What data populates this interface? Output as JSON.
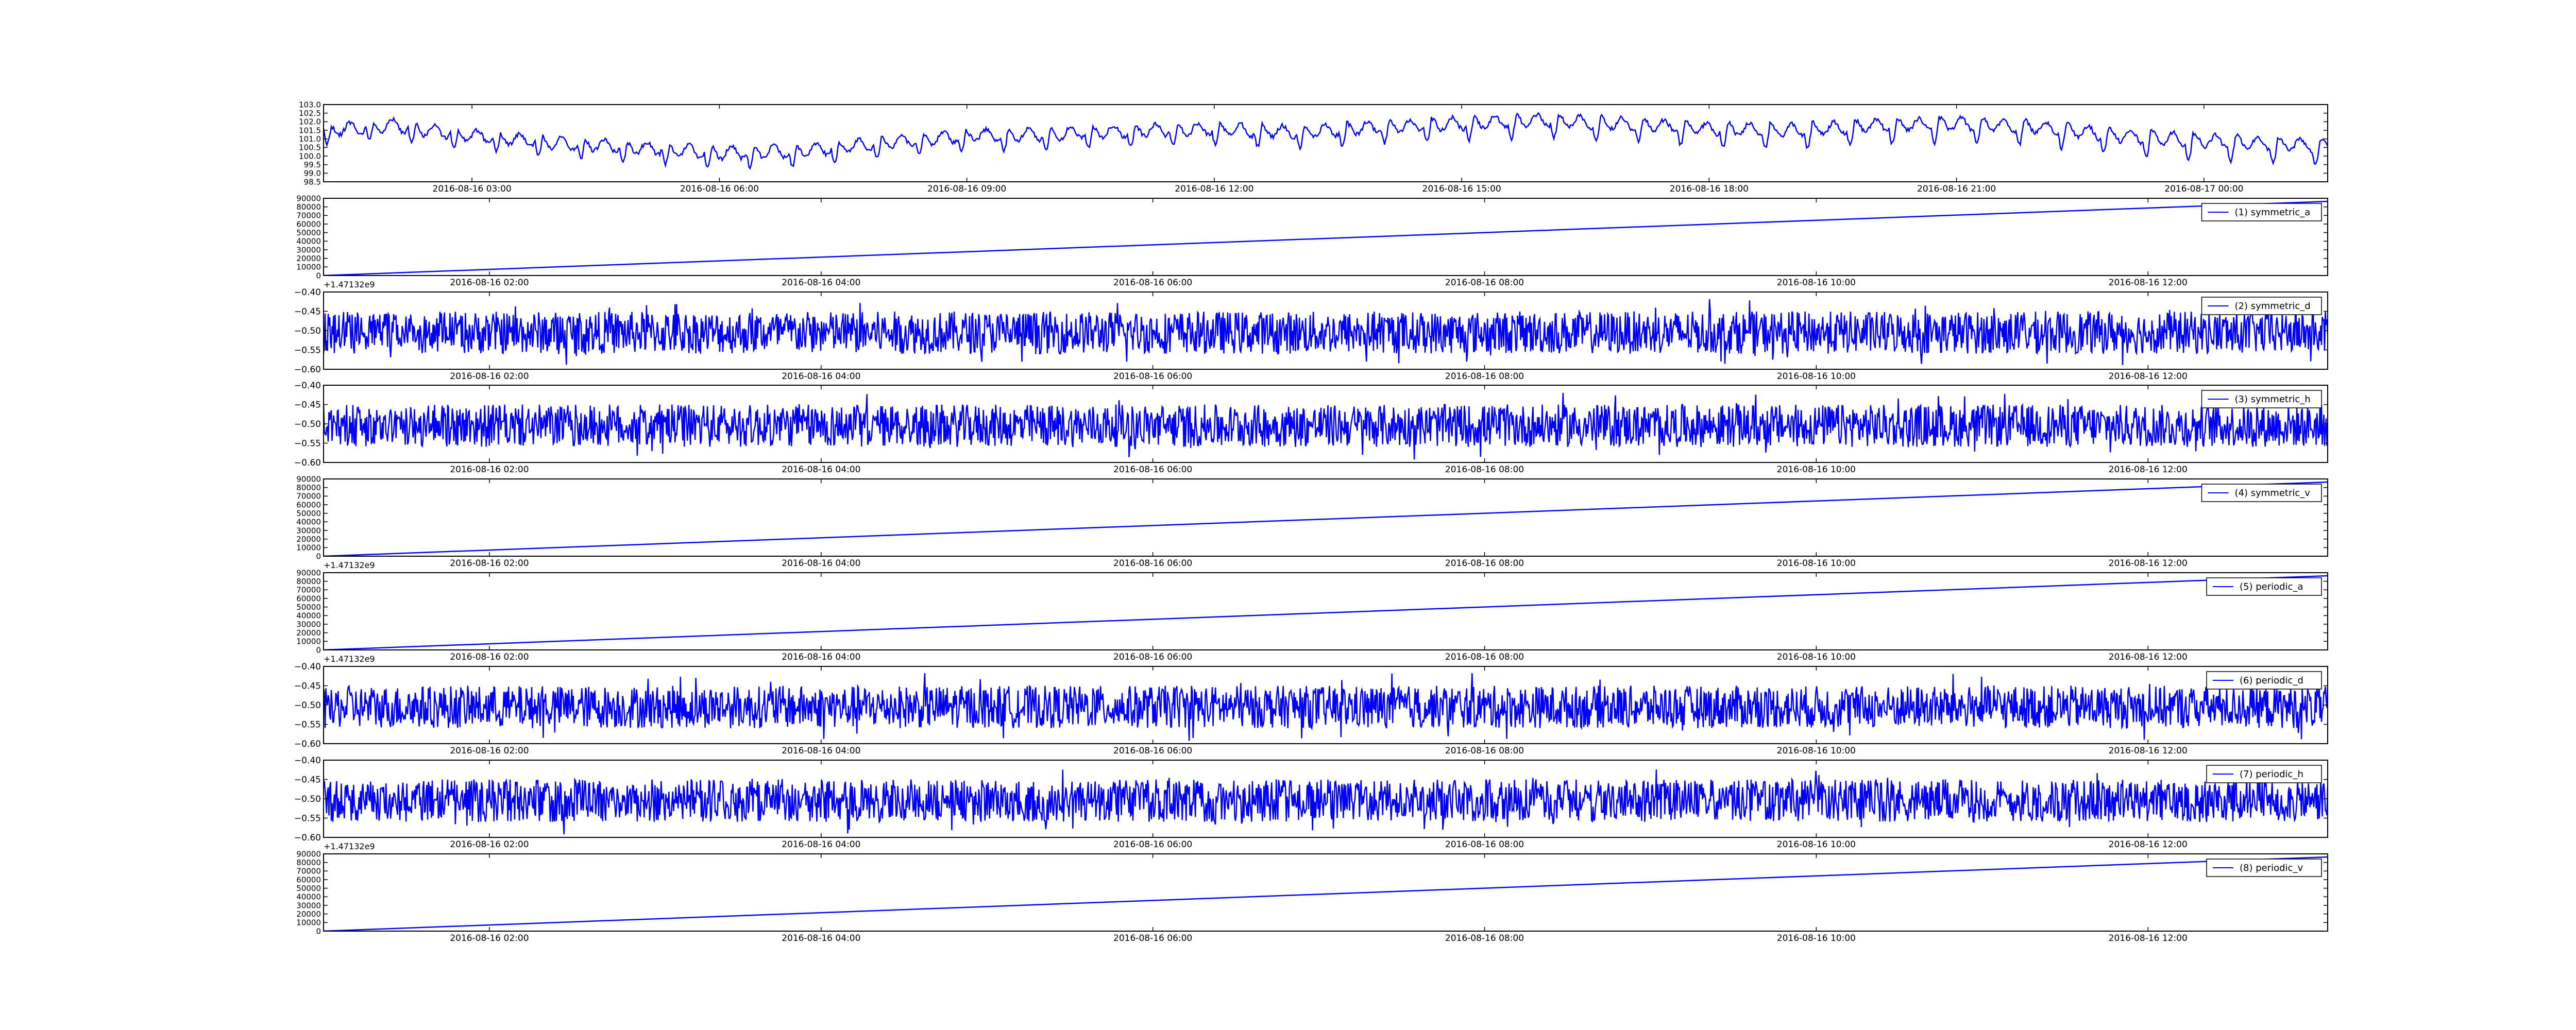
{
  "colors": {
    "line": "#0000ff",
    "axis": "#000000",
    "background": "#ffffff"
  },
  "chart_data": [
    {
      "type": "line",
      "legend": "",
      "x_type": "datetime",
      "xlim": [
        "2016-08-16 01:12",
        "2016-08-17 01:30"
      ],
      "ylim": [
        98.5,
        103.0
      ],
      "y_ticks": [
        "98.5",
        "99.0",
        "99.5",
        "100.0",
        "100.5",
        "101.0",
        "101.5",
        "102.0",
        "102.5",
        "103.0"
      ],
      "x_ticks": [
        {
          "value": "2016-08-16 03:00",
          "label": "2016-08-16 03:00"
        },
        {
          "value": "2016-08-16 06:00",
          "label": "2016-08-16 06:00"
        },
        {
          "value": "2016-08-16 09:00",
          "label": "2016-08-16 09:00"
        },
        {
          "value": "2016-08-16 12:00",
          "label": "2016-08-16 12:00"
        },
        {
          "value": "2016-08-16 15:00",
          "label": "2016-08-16 15:00"
        },
        {
          "value": "2016-08-16 18:00",
          "label": "2016-08-16 18:00"
        },
        {
          "value": "2016-08-16 21:00",
          "label": "2016-08-16 21:00"
        },
        {
          "value": "2016-08-17 00:00",
          "label": "2016-08-17 00:00"
        }
      ],
      "x_offset_label": "",
      "series": [
        {
          "x": [
            "2016-08-16 01:12",
            "2016-08-16 02:00",
            "2016-08-16 03:00",
            "2016-08-16 04:00",
            "2016-08-16 05:00",
            "2016-08-16 06:00",
            "2016-08-16 07:00",
            "2016-08-16 08:00",
            "2016-08-16 09:00",
            "2016-08-16 10:00",
            "2016-08-16 11:00",
            "2016-08-16 12:00",
            "2016-08-16 13:00",
            "2016-08-16 14:00",
            "2016-08-16 15:00",
            "2016-08-16 16:00",
            "2016-08-16 17:00",
            "2016-08-16 18:00",
            "2016-08-16 19:00",
            "2016-08-16 20:00",
            "2016-08-16 21:00",
            "2016-08-16 22:00",
            "2016-08-16 23:00",
            "2016-08-17 00:00",
            "2016-08-17 01:30"
          ],
          "values": [
            101.5,
            101.8,
            101.2,
            100.8,
            100.5,
            100.2,
            100.3,
            100.8,
            101.2,
            101.3,
            101.5,
            101.6,
            101.4,
            101.7,
            101.9,
            102.1,
            101.9,
            101.6,
            101.5,
            101.8,
            101.9,
            101.7,
            101.2,
            100.9,
            100.6
          ]
        }
      ]
    },
    {
      "type": "line",
      "legend": "(1) symmetric_a",
      "x_type": "datetime",
      "xlim": [
        "2016-08-16 01:00",
        "2016-08-16 13:05"
      ],
      "ylim": [
        0,
        90000
      ],
      "y_ticks": [
        "0",
        "10000",
        "20000",
        "30000",
        "40000",
        "50000",
        "60000",
        "70000",
        "80000",
        "90000"
      ],
      "x_ticks": [
        {
          "value": "2016-08-16 02:00",
          "label": "2016-08-16 02:00"
        },
        {
          "value": "2016-08-16 04:00",
          "label": "2016-08-16 04:00"
        },
        {
          "value": "2016-08-16 06:00",
          "label": "2016-08-16 06:00"
        },
        {
          "value": "2016-08-16 08:00",
          "label": "2016-08-16 08:00"
        },
        {
          "value": "2016-08-16 10:00",
          "label": "2016-08-16 10:00"
        },
        {
          "value": "2016-08-16 12:00",
          "label": "2016-08-16 12:00"
        }
      ],
      "x_offset_label": "+1.47132e9",
      "series": [
        {
          "name": "(1) symmetric_a",
          "x": [
            "2016-08-16 01:00",
            "2016-08-16 13:05"
          ],
          "values": [
            0,
            86400
          ]
        }
      ]
    },
    {
      "type": "line",
      "legend": "(2) symmetric_d",
      "x_type": "datetime",
      "xlim": [
        "2016-08-16 01:00",
        "2016-08-16 13:05"
      ],
      "ylim": [
        -0.6,
        -0.4
      ],
      "y_ticks": [
        "−0.60",
        "−0.55",
        "−0.50",
        "−0.45",
        "−0.40"
      ],
      "x_ticks": [
        {
          "value": "2016-08-16 02:00",
          "label": "2016-08-16 02:00"
        },
        {
          "value": "2016-08-16 04:00",
          "label": "2016-08-16 04:00"
        },
        {
          "value": "2016-08-16 06:00",
          "label": "2016-08-16 06:00"
        },
        {
          "value": "2016-08-16 08:00",
          "label": "2016-08-16 08:00"
        },
        {
          "value": "2016-08-16 10:00",
          "label": "2016-08-16 10:00"
        },
        {
          "value": "2016-08-16 12:00",
          "label": "2016-08-16 12:00"
        }
      ],
      "x_offset_label": "",
      "series": [
        {
          "name": "(2) symmetric_d",
          "noise": {
            "mean": -0.505,
            "half_range": 0.055,
            "seed": 2
          }
        }
      ]
    },
    {
      "type": "line",
      "legend": "(3) symmetric_h",
      "x_type": "datetime",
      "xlim": [
        "2016-08-16 01:00",
        "2016-08-16 13:05"
      ],
      "ylim": [
        -0.6,
        -0.4
      ],
      "y_ticks": [
        "−0.60",
        "−0.55",
        "−0.50",
        "−0.45",
        "−0.40"
      ],
      "x_ticks": [
        {
          "value": "2016-08-16 02:00",
          "label": "2016-08-16 02:00"
        },
        {
          "value": "2016-08-16 04:00",
          "label": "2016-08-16 04:00"
        },
        {
          "value": "2016-08-16 06:00",
          "label": "2016-08-16 06:00"
        },
        {
          "value": "2016-08-16 08:00",
          "label": "2016-08-16 08:00"
        },
        {
          "value": "2016-08-16 10:00",
          "label": "2016-08-16 10:00"
        },
        {
          "value": "2016-08-16 12:00",
          "label": "2016-08-16 12:00"
        }
      ],
      "x_offset_label": "",
      "series": [
        {
          "name": "(3) symmetric_h",
          "noise": {
            "mean": -0.505,
            "half_range": 0.055,
            "seed": 3
          }
        }
      ]
    },
    {
      "type": "line",
      "legend": "(4) symmetric_v",
      "x_type": "datetime",
      "xlim": [
        "2016-08-16 01:00",
        "2016-08-16 13:05"
      ],
      "ylim": [
        0,
        90000
      ],
      "y_ticks": [
        "0",
        "10000",
        "20000",
        "30000",
        "40000",
        "50000",
        "60000",
        "70000",
        "80000",
        "90000"
      ],
      "x_ticks": [
        {
          "value": "2016-08-16 02:00",
          "label": "2016-08-16 02:00"
        },
        {
          "value": "2016-08-16 04:00",
          "label": "2016-08-16 04:00"
        },
        {
          "value": "2016-08-16 06:00",
          "label": "2016-08-16 06:00"
        },
        {
          "value": "2016-08-16 08:00",
          "label": "2016-08-16 08:00"
        },
        {
          "value": "2016-08-16 10:00",
          "label": "2016-08-16 10:00"
        },
        {
          "value": "2016-08-16 12:00",
          "label": "2016-08-16 12:00"
        }
      ],
      "x_offset_label": "+1.47132e9",
      "series": [
        {
          "name": "(4) symmetric_v",
          "x": [
            "2016-08-16 01:00",
            "2016-08-16 13:05"
          ],
          "values": [
            0,
            86400
          ]
        }
      ]
    },
    {
      "type": "line",
      "legend": "(5) periodic_a",
      "x_type": "datetime",
      "xlim": [
        "2016-08-16 01:00",
        "2016-08-16 13:05"
      ],
      "ylim": [
        0,
        90000
      ],
      "y_ticks": [
        "0",
        "10000",
        "20000",
        "30000",
        "40000",
        "50000",
        "60000",
        "70000",
        "80000",
        "90000"
      ],
      "x_ticks": [
        {
          "value": "2016-08-16 02:00",
          "label": "2016-08-16 02:00"
        },
        {
          "value": "2016-08-16 04:00",
          "label": "2016-08-16 04:00"
        },
        {
          "value": "2016-08-16 06:00",
          "label": "2016-08-16 06:00"
        },
        {
          "value": "2016-08-16 08:00",
          "label": "2016-08-16 08:00"
        },
        {
          "value": "2016-08-16 10:00",
          "label": "2016-08-16 10:00"
        },
        {
          "value": "2016-08-16 12:00",
          "label": "2016-08-16 12:00"
        }
      ],
      "x_offset_label": "+1.47132e9",
      "series": [
        {
          "name": "(5) periodic_a",
          "x": [
            "2016-08-16 01:00",
            "2016-08-16 13:05"
          ],
          "values": [
            0,
            86400
          ]
        }
      ]
    },
    {
      "type": "line",
      "legend": "(6) periodic_d",
      "x_type": "datetime",
      "xlim": [
        "2016-08-16 01:00",
        "2016-08-16 13:05"
      ],
      "ylim": [
        -0.6,
        -0.4
      ],
      "y_ticks": [
        "−0.60",
        "−0.55",
        "−0.50",
        "−0.45",
        "−0.40"
      ],
      "x_ticks": [
        {
          "value": "2016-08-16 02:00",
          "label": "2016-08-16 02:00"
        },
        {
          "value": "2016-08-16 04:00",
          "label": "2016-08-16 04:00"
        },
        {
          "value": "2016-08-16 06:00",
          "label": "2016-08-16 06:00"
        },
        {
          "value": "2016-08-16 08:00",
          "label": "2016-08-16 08:00"
        },
        {
          "value": "2016-08-16 10:00",
          "label": "2016-08-16 10:00"
        },
        {
          "value": "2016-08-16 12:00",
          "label": "2016-08-16 12:00"
        }
      ],
      "x_offset_label": "",
      "series": [
        {
          "name": "(6) periodic_d",
          "noise": {
            "mean": -0.505,
            "half_range": 0.055,
            "seed": 6
          }
        }
      ]
    },
    {
      "type": "line",
      "legend": "(7) periodic_h",
      "x_type": "datetime",
      "xlim": [
        "2016-08-16 01:00",
        "2016-08-16 13:05"
      ],
      "ylim": [
        -0.6,
        -0.4
      ],
      "y_ticks": [
        "−0.60",
        "−0.55",
        "−0.50",
        "−0.45",
        "−0.40"
      ],
      "x_ticks": [
        {
          "value": "2016-08-16 02:00",
          "label": "2016-08-16 02:00"
        },
        {
          "value": "2016-08-16 04:00",
          "label": "2016-08-16 04:00"
        },
        {
          "value": "2016-08-16 06:00",
          "label": "2016-08-16 06:00"
        },
        {
          "value": "2016-08-16 08:00",
          "label": "2016-08-16 08:00"
        },
        {
          "value": "2016-08-16 10:00",
          "label": "2016-08-16 10:00"
        },
        {
          "value": "2016-08-16 12:00",
          "label": "2016-08-16 12:00"
        }
      ],
      "x_offset_label": "+1.47132e9",
      "series": [
        {
          "name": "(7) periodic_h",
          "noise": {
            "mean": -0.505,
            "half_range": 0.055,
            "seed": 7
          }
        }
      ]
    },
    {
      "type": "line",
      "legend": "(8) periodic_v",
      "x_type": "datetime",
      "xlim": [
        "2016-08-16 01:00",
        "2016-08-16 13:05"
      ],
      "ylim": [
        0,
        90000
      ],
      "y_ticks": [
        "0",
        "10000",
        "20000",
        "30000",
        "40000",
        "50000",
        "60000",
        "70000",
        "80000",
        "90000"
      ],
      "x_ticks": [
        {
          "value": "2016-08-16 02:00",
          "label": "2016-08-16 02:00"
        },
        {
          "value": "2016-08-16 04:00",
          "label": "2016-08-16 04:00"
        },
        {
          "value": "2016-08-16 06:00",
          "label": "2016-08-16 06:00"
        },
        {
          "value": "2016-08-16 08:00",
          "label": "2016-08-16 08:00"
        },
        {
          "value": "2016-08-16 10:00",
          "label": "2016-08-16 10:00"
        },
        {
          "value": "2016-08-16 12:00",
          "label": "2016-08-16 12:00"
        }
      ],
      "x_offset_label": "",
      "series": [
        {
          "name": "(8) periodic_v",
          "x": [
            "2016-08-16 01:00",
            "2016-08-16 13:05"
          ],
          "values": [
            0,
            86400
          ]
        }
      ]
    }
  ]
}
